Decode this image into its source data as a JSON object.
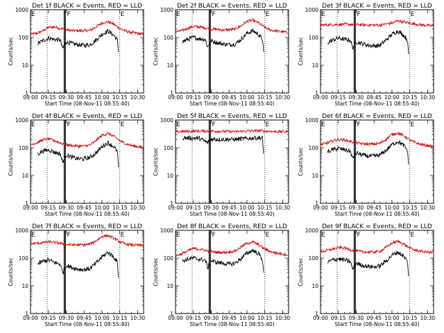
{
  "chart_data": [
    {
      "type": "line",
      "title": "Det 1f BLACK = Events, RED = LLD",
      "xlabel": "Start Time (08-Nov-11 08:55:40)",
      "ylabel": "Counts/sec",
      "xticklabels": [
        "09:00",
        "09:15",
        "09:30",
        "09:45",
        "10:00",
        "10:15",
        "10:30"
      ],
      "yticklabels": [
        "1",
        "10",
        "100",
        "1000"
      ],
      "xlim": [
        "09:00",
        "10:35"
      ],
      "ylim": [
        1,
        1000
      ],
      "yscale": "log",
      "markers": [
        "E",
        "F",
        "E"
      ],
      "series": [
        {
          "color": "#d40000",
          "x": [
            "09:00",
            "09:05",
            "09:10",
            "09:15",
            "09:20",
            "09:25",
            "09:30",
            "09:35",
            "09:40",
            "09:45",
            "09:50",
            "09:55",
            "10:00",
            "10:05",
            "10:10",
            "10:15",
            "10:20",
            "10:25",
            "10:30",
            "10:35"
          ],
          "y": [
            130,
            140,
            170,
            230,
            240,
            210,
            190,
            175,
            175,
            175,
            180,
            240,
            330,
            370,
            300,
            210,
            170,
            150,
            140,
            130
          ]
        },
        {
          "color": "#000000",
          "x": [
            "09:06",
            "09:10",
            "09:15",
            "09:20",
            "09:25",
            "09:27",
            "09:30",
            "09:35",
            "09:40",
            "09:45",
            "09:50",
            "09:55",
            "10:00",
            "10:05",
            "10:10",
            "10:13",
            "10:14"
          ],
          "y": [
            60,
            75,
            95,
            85,
            80,
            40,
            70,
            60,
            55,
            52,
            55,
            80,
            130,
            170,
            120,
            80,
            30
          ]
        }
      ]
    },
    {
      "type": "line",
      "title": "Det 2f BLACK = Events, RED = LLD",
      "xlabel": "Start Time (08-Nov-11 08:55:40)",
      "ylabel": "Counts/sec",
      "xticklabels": [
        "09:00",
        "09:15",
        "09:30",
        "09:45",
        "10:00",
        "10:15",
        "10:30"
      ],
      "yticklabels": [
        "1",
        "10",
        "100",
        "1000"
      ],
      "xlim": [
        "09:00",
        "10:35"
      ],
      "ylim": [
        1,
        1000
      ],
      "yscale": "log",
      "markers": [
        "E",
        "F",
        "E"
      ],
      "series": [
        {
          "color": "#d40000",
          "x": [
            "09:00",
            "09:05",
            "09:10",
            "09:15",
            "09:20",
            "09:25",
            "09:30",
            "09:35",
            "09:40",
            "09:45",
            "09:50",
            "09:55",
            "10:00",
            "10:05",
            "10:10",
            "10:15",
            "10:20",
            "10:25",
            "10:30",
            "10:35"
          ],
          "y": [
            160,
            175,
            210,
            250,
            240,
            220,
            200,
            195,
            185,
            190,
            200,
            260,
            380,
            420,
            330,
            230,
            185,
            170,
            160,
            150
          ]
        },
        {
          "color": "#000000",
          "x": [
            "09:06",
            "09:10",
            "09:15",
            "09:20",
            "09:25",
            "09:27",
            "09:30",
            "09:35",
            "09:40",
            "09:45",
            "09:50",
            "09:55",
            "10:00",
            "10:05",
            "10:10",
            "10:13",
            "10:14"
          ],
          "y": [
            70,
            85,
            100,
            90,
            85,
            45,
            75,
            65,
            58,
            55,
            58,
            85,
            140,
            175,
            125,
            85,
            30
          ]
        }
      ]
    },
    {
      "type": "line",
      "title": "Det 3f BLACK = Events, RED = LLD",
      "xlabel": "Start Time (08-Nov-11 08:55:40)",
      "ylabel": "Counts/sec",
      "xticklabels": [
        "09:00",
        "09:15",
        "09:30",
        "09:45",
        "10:00",
        "10:15",
        "10:30"
      ],
      "yticklabels": [
        "1",
        "10",
        "100",
        "1000"
      ],
      "xlim": [
        "09:00",
        "10:35"
      ],
      "ylim": [
        1,
        1000
      ],
      "yscale": "log",
      "markers": [
        "E",
        "F",
        "E"
      ],
      "series": [
        {
          "color": "#d40000",
          "x": [
            "09:00",
            "09:10",
            "09:20",
            "09:30",
            "09:40",
            "09:50",
            "10:00",
            "10:05",
            "10:10",
            "10:20",
            "10:30",
            "10:35"
          ],
          "y": [
            280,
            290,
            300,
            290,
            280,
            280,
            330,
            400,
            360,
            300,
            270,
            260
          ]
        },
        {
          "color": "#000000",
          "x": [
            "09:06",
            "09:10",
            "09:15",
            "09:20",
            "09:25",
            "09:27",
            "09:30",
            "09:35",
            "09:40",
            "09:45",
            "09:50",
            "09:55",
            "10:00",
            "10:05",
            "10:10",
            "10:13",
            "10:14"
          ],
          "y": [
            65,
            80,
            95,
            85,
            80,
            42,
            70,
            60,
            52,
            50,
            52,
            80,
            130,
            170,
            120,
            80,
            25
          ]
        }
      ]
    },
    {
      "type": "line",
      "title": "Det 4f BLACK = Events, RED = LLD",
      "xlabel": "Start Time (08-Nov-11 08:55:40)",
      "ylabel": "Counts/sec",
      "xticklabels": [
        "09:00",
        "09:15",
        "09:30",
        "09:45",
        "10:00",
        "10:15",
        "10:30"
      ],
      "yticklabels": [
        "1",
        "10",
        "100",
        "1000"
      ],
      "xlim": [
        "09:00",
        "10:35"
      ],
      "ylim": [
        1,
        1000
      ],
      "yscale": "log",
      "markers": [
        "E",
        "F",
        "E"
      ],
      "series": [
        {
          "color": "#d40000",
          "x": [
            "09:00",
            "09:05",
            "09:10",
            "09:15",
            "09:20",
            "09:25",
            "09:30",
            "09:35",
            "09:40",
            "09:45",
            "09:50",
            "09:55",
            "10:00",
            "10:05",
            "10:10",
            "10:15",
            "10:20",
            "10:25",
            "10:30",
            "10:35"
          ],
          "y": [
            130,
            150,
            190,
            210,
            180,
            150,
            130,
            120,
            115,
            115,
            125,
            180,
            280,
            330,
            260,
            180,
            140,
            120,
            110,
            100
          ]
        },
        {
          "color": "#000000",
          "x": [
            "09:06",
            "09:10",
            "09:15",
            "09:20",
            "09:25",
            "09:27",
            "09:30",
            "09:35",
            "09:40",
            "09:45",
            "09:50",
            "09:55",
            "10:00",
            "10:05",
            "10:10",
            "10:13",
            "10:14"
          ],
          "y": [
            60,
            75,
            85,
            70,
            60,
            30,
            55,
            45,
            40,
            40,
            45,
            65,
            110,
            150,
            110,
            70,
            20
          ]
        }
      ]
    },
    {
      "type": "line",
      "title": "Det 5f BLACK = Events, RED = LLD",
      "xlabel": "Start Time (08-Nov-11 08:55:40)",
      "ylabel": "Counts/sec",
      "xticklabels": [
        "09:00",
        "09:15",
        "09:30",
        "09:45",
        "10:00",
        "10:15",
        "10:30"
      ],
      "yticklabels": [
        "1",
        "10",
        "100",
        "1000"
      ],
      "xlim": [
        "09:00",
        "10:35"
      ],
      "ylim": [
        1,
        1000
      ],
      "yscale": "log",
      "markers": [
        "E",
        "F",
        "E"
      ],
      "series": [
        {
          "color": "#d40000",
          "x": [
            "09:00",
            "09:10",
            "09:20",
            "09:30",
            "09:40",
            "09:50",
            "10:00",
            "10:10",
            "10:20",
            "10:30",
            "10:35"
          ],
          "y": [
            380,
            390,
            400,
            400,
            390,
            380,
            400,
            410,
            390,
            380,
            380
          ]
        },
        {
          "color": "#000000",
          "x": [
            "09:06",
            "09:10",
            "09:20",
            "09:27",
            "09:30",
            "09:40",
            "09:50",
            "10:00",
            "10:10",
            "10:13",
            "10:14"
          ],
          "y": [
            230,
            225,
            220,
            150,
            205,
            200,
            200,
            215,
            230,
            220,
            60
          ]
        }
      ]
    },
    {
      "type": "line",
      "title": "Det 6f BLACK = Events, RED = LLD",
      "xlabel": "Start Time (08-Nov-11 08:55:40)",
      "ylabel": "Counts/sec",
      "xticklabels": [
        "09:00",
        "09:15",
        "09:30",
        "09:45",
        "10:00",
        "10:15",
        "10:30"
      ],
      "yticklabels": [
        "1",
        "10",
        "100",
        "1000"
      ],
      "xlim": [
        "09:00",
        "10:35"
      ],
      "ylim": [
        1,
        1000
      ],
      "yscale": "log",
      "markers": [
        "E",
        "F",
        "E"
      ],
      "series": [
        {
          "color": "#d40000",
          "x": [
            "09:00",
            "09:05",
            "09:10",
            "09:15",
            "09:20",
            "09:25",
            "09:30",
            "09:35",
            "09:40",
            "09:45",
            "09:50",
            "09:55",
            "10:00",
            "10:05",
            "10:10",
            "10:15",
            "10:20",
            "10:25",
            "10:30",
            "10:35"
          ],
          "y": [
            130,
            145,
            175,
            200,
            190,
            170,
            150,
            140,
            135,
            135,
            145,
            200,
            300,
            340,
            270,
            190,
            150,
            130,
            120,
            110
          ]
        },
        {
          "color": "#000000",
          "x": [
            "09:06",
            "09:10",
            "09:15",
            "09:20",
            "09:25",
            "09:27",
            "09:30",
            "09:35",
            "09:40",
            "09:45",
            "09:50",
            "09:55",
            "10:00",
            "10:05",
            "10:10",
            "10:13",
            "10:14"
          ],
          "y": [
            70,
            85,
            95,
            85,
            75,
            40,
            65,
            55,
            50,
            50,
            55,
            80,
            130,
            170,
            120,
            80,
            25
          ]
        }
      ]
    },
    {
      "type": "line",
      "title": "Det 7f BLACK = Events, RED = LLD",
      "xlabel": "Start Time (08-Nov-11 08:55:40)",
      "ylabel": "Counts/sec",
      "xticklabels": [
        "09:00",
        "09:15",
        "09:30",
        "09:45",
        "10:00",
        "10:15",
        "10:30"
      ],
      "yticklabels": [
        "1",
        "10",
        "100",
        "1000"
      ],
      "xlim": [
        "09:00",
        "10:35"
      ],
      "ylim": [
        1,
        1000
      ],
      "yscale": "log",
      "markers": [
        "E",
        "F",
        "E"
      ],
      "series": [
        {
          "color": "#d40000",
          "x": [
            "09:00",
            "09:05",
            "09:10",
            "09:15",
            "09:20",
            "09:25",
            "09:30",
            "09:35",
            "09:40",
            "09:45",
            "09:50",
            "09:55",
            "10:00",
            "10:05",
            "10:10",
            "10:15",
            "10:20",
            "10:25",
            "10:30",
            "10:35"
          ],
          "y": [
            330,
            340,
            360,
            380,
            370,
            340,
            310,
            300,
            300,
            300,
            320,
            420,
            600,
            650,
            520,
            380,
            320,
            300,
            290,
            280
          ]
        },
        {
          "color": "#000000",
          "x": [
            "09:06",
            "09:10",
            "09:15",
            "09:20",
            "09:25",
            "09:27",
            "09:30",
            "09:35",
            "09:40",
            "09:45",
            "09:50",
            "09:55",
            "10:00",
            "10:05",
            "10:10",
            "10:13",
            "10:14"
          ],
          "y": [
            60,
            75,
            85,
            70,
            60,
            30,
            55,
            45,
            40,
            38,
            42,
            65,
            110,
            160,
            110,
            70,
            20
          ]
        }
      ]
    },
    {
      "type": "line",
      "title": "Det 8f BLACK = Events, RED = LLD",
      "xlabel": "Start Time (08-Nov-11 08:55:40)",
      "ylabel": "Counts/sec",
      "xticklabels": [
        "09:00",
        "09:15",
        "09:30",
        "09:45",
        "10:00",
        "10:15",
        "10:30"
      ],
      "yticklabels": [
        "1",
        "10",
        "100",
        "1000"
      ],
      "xlim": [
        "09:00",
        "10:35"
      ],
      "ylim": [
        1,
        1000
      ],
      "yscale": "log",
      "markers": [
        "E",
        "F",
        "E"
      ],
      "series": [
        {
          "color": "#d40000",
          "x": [
            "09:00",
            "09:05",
            "09:10",
            "09:15",
            "09:20",
            "09:25",
            "09:30",
            "09:35",
            "09:40",
            "09:45",
            "09:50",
            "09:55",
            "10:00",
            "10:05",
            "10:10",
            "10:15",
            "10:20",
            "10:25",
            "10:30",
            "10:35"
          ],
          "y": [
            120,
            140,
            180,
            220,
            210,
            190,
            170,
            160,
            160,
            165,
            180,
            250,
            340,
            380,
            300,
            210,
            170,
            150,
            140,
            130
          ]
        },
        {
          "color": "#000000",
          "x": [
            "09:06",
            "09:10",
            "09:15",
            "09:20",
            "09:25",
            "09:27",
            "09:30",
            "09:35",
            "09:40",
            "09:45",
            "09:50",
            "09:55",
            "10:00",
            "10:05",
            "10:10",
            "10:13",
            "10:14"
          ],
          "y": [
            80,
            90,
            100,
            90,
            85,
            45,
            80,
            70,
            65,
            60,
            65,
            95,
            150,
            190,
            140,
            90,
            30
          ]
        }
      ]
    },
    {
      "type": "line",
      "title": "Det 9f BLACK = Events, RED = LLD",
      "xlabel": "Start Time (08-Nov-11 08:55:40)",
      "ylabel": "Counts/sec",
      "xticklabels": [
        "09:00",
        "09:15",
        "09:30",
        "09:45",
        "10:00",
        "10:15",
        "10:30"
      ],
      "yticklabels": [
        "1",
        "10",
        "100",
        "1000"
      ],
      "xlim": [
        "09:00",
        "10:35"
      ],
      "ylim": [
        1,
        1000
      ],
      "yscale": "log",
      "markers": [
        "E",
        "F",
        "E"
      ],
      "series": [
        {
          "color": "#d40000",
          "x": [
            "09:00",
            "09:05",
            "09:10",
            "09:15",
            "09:20",
            "09:25",
            "09:30",
            "09:35",
            "09:40",
            "09:45",
            "09:50",
            "09:55",
            "10:00",
            "10:05",
            "10:10",
            "10:15",
            "10:20",
            "10:25",
            "10:30",
            "10:35"
          ],
          "y": [
            170,
            185,
            210,
            240,
            230,
            200,
            180,
            170,
            165,
            165,
            175,
            240,
            350,
            400,
            320,
            230,
            190,
            175,
            165,
            160
          ]
        },
        {
          "color": "#000000",
          "x": [
            "09:06",
            "09:10",
            "09:15",
            "09:20",
            "09:25",
            "09:27",
            "09:30",
            "09:35",
            "09:40",
            "09:45",
            "09:50",
            "09:55",
            "10:00",
            "10:05",
            "10:10",
            "10:13",
            "10:14"
          ],
          "y": [
            70,
            85,
            95,
            85,
            75,
            40,
            65,
            55,
            50,
            48,
            52,
            78,
            125,
            165,
            115,
            75,
            22
          ]
        }
      ]
    }
  ]
}
